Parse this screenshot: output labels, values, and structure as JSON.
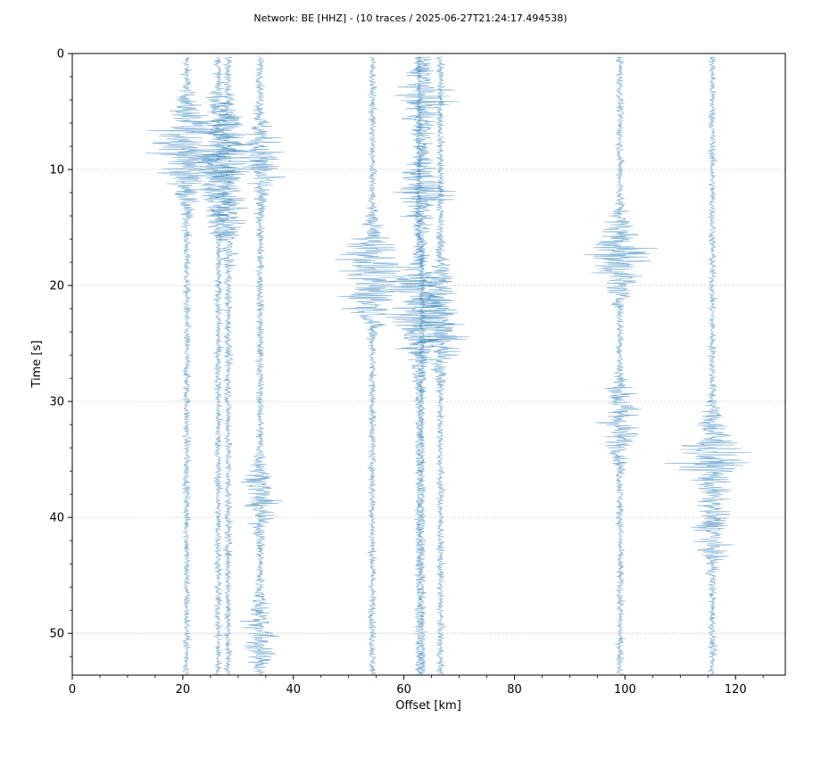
{
  "chart_data": {
    "type": "seismic-record-section",
    "title": "Network: BE [HHZ] - (10 traces / 2025-06-27T21:24:17.494538)",
    "xlabel": "Offset [km]",
    "ylabel": "Time [s]",
    "xlim": [
      0,
      129
    ],
    "ylim": [
      53.6,
      0
    ],
    "y_inverted": true,
    "xticks": [
      0,
      20,
      40,
      60,
      80,
      100,
      120
    ],
    "yticks": [
      0,
      10,
      20,
      30,
      40,
      50
    ],
    "grid": "horizontal-dotted",
    "trace_color": "#1f77b4",
    "traces": [
      {
        "offset": 20.7,
        "max_amplitude_km": 7.5,
        "bursts": [
          {
            "t": 7.5,
            "amp": 7.5
          },
          {
            "t": 10.5,
            "amp": 2.5
          }
        ]
      },
      {
        "offset": 26.4,
        "max_amplitude_km": 5.5,
        "bursts": [
          {
            "t": 7,
            "amp": 5
          },
          {
            "t": 12,
            "amp": 3.5
          }
        ]
      },
      {
        "offset": 28.2,
        "max_amplitude_km": 6.0,
        "bursts": [
          {
            "t": 8,
            "amp": 5.5
          },
          {
            "t": 14,
            "amp": 3
          }
        ]
      },
      {
        "offset": 34.0,
        "max_amplitude_km": 5.5,
        "bursts": [
          {
            "t": 9,
            "amp": 5
          },
          {
            "t": 38,
            "amp": 3
          },
          {
            "t": 50,
            "amp": 3.5
          }
        ]
      },
      {
        "offset": 54.3,
        "max_amplitude_km": 7.5,
        "bursts": [
          {
            "t": 18.5,
            "amp": 7.5
          },
          {
            "t": 20,
            "amp": 5.5
          }
        ]
      },
      {
        "offset": 62.7,
        "max_amplitude_km": 8.0,
        "bursts": [
          {
            "t": 21,
            "amp": 7.5
          },
          {
            "t": 24,
            "amp": 5
          }
        ]
      },
      {
        "offset": 63.3,
        "max_amplitude_km": 7.0,
        "bursts": [
          {
            "t": 4,
            "amp": 5
          },
          {
            "t": 12,
            "amp": 5
          }
        ]
      },
      {
        "offset": 66.6,
        "max_amplitude_km": 5.0,
        "bursts": [
          {
            "t": 21,
            "amp": 4.5
          },
          {
            "t": 24,
            "amp": 4
          }
        ]
      },
      {
        "offset": 99.1,
        "max_amplitude_km": 7.5,
        "bursts": [
          {
            "t": 17.5,
            "amp": 7
          },
          {
            "t": 31.5,
            "amp": 4.5
          }
        ]
      },
      {
        "offset": 115.8,
        "max_amplitude_km": 7.5,
        "bursts": [
          {
            "t": 34.5,
            "amp": 7.5
          },
          {
            "t": 41,
            "amp": 3.5
          }
        ]
      }
    ]
  }
}
